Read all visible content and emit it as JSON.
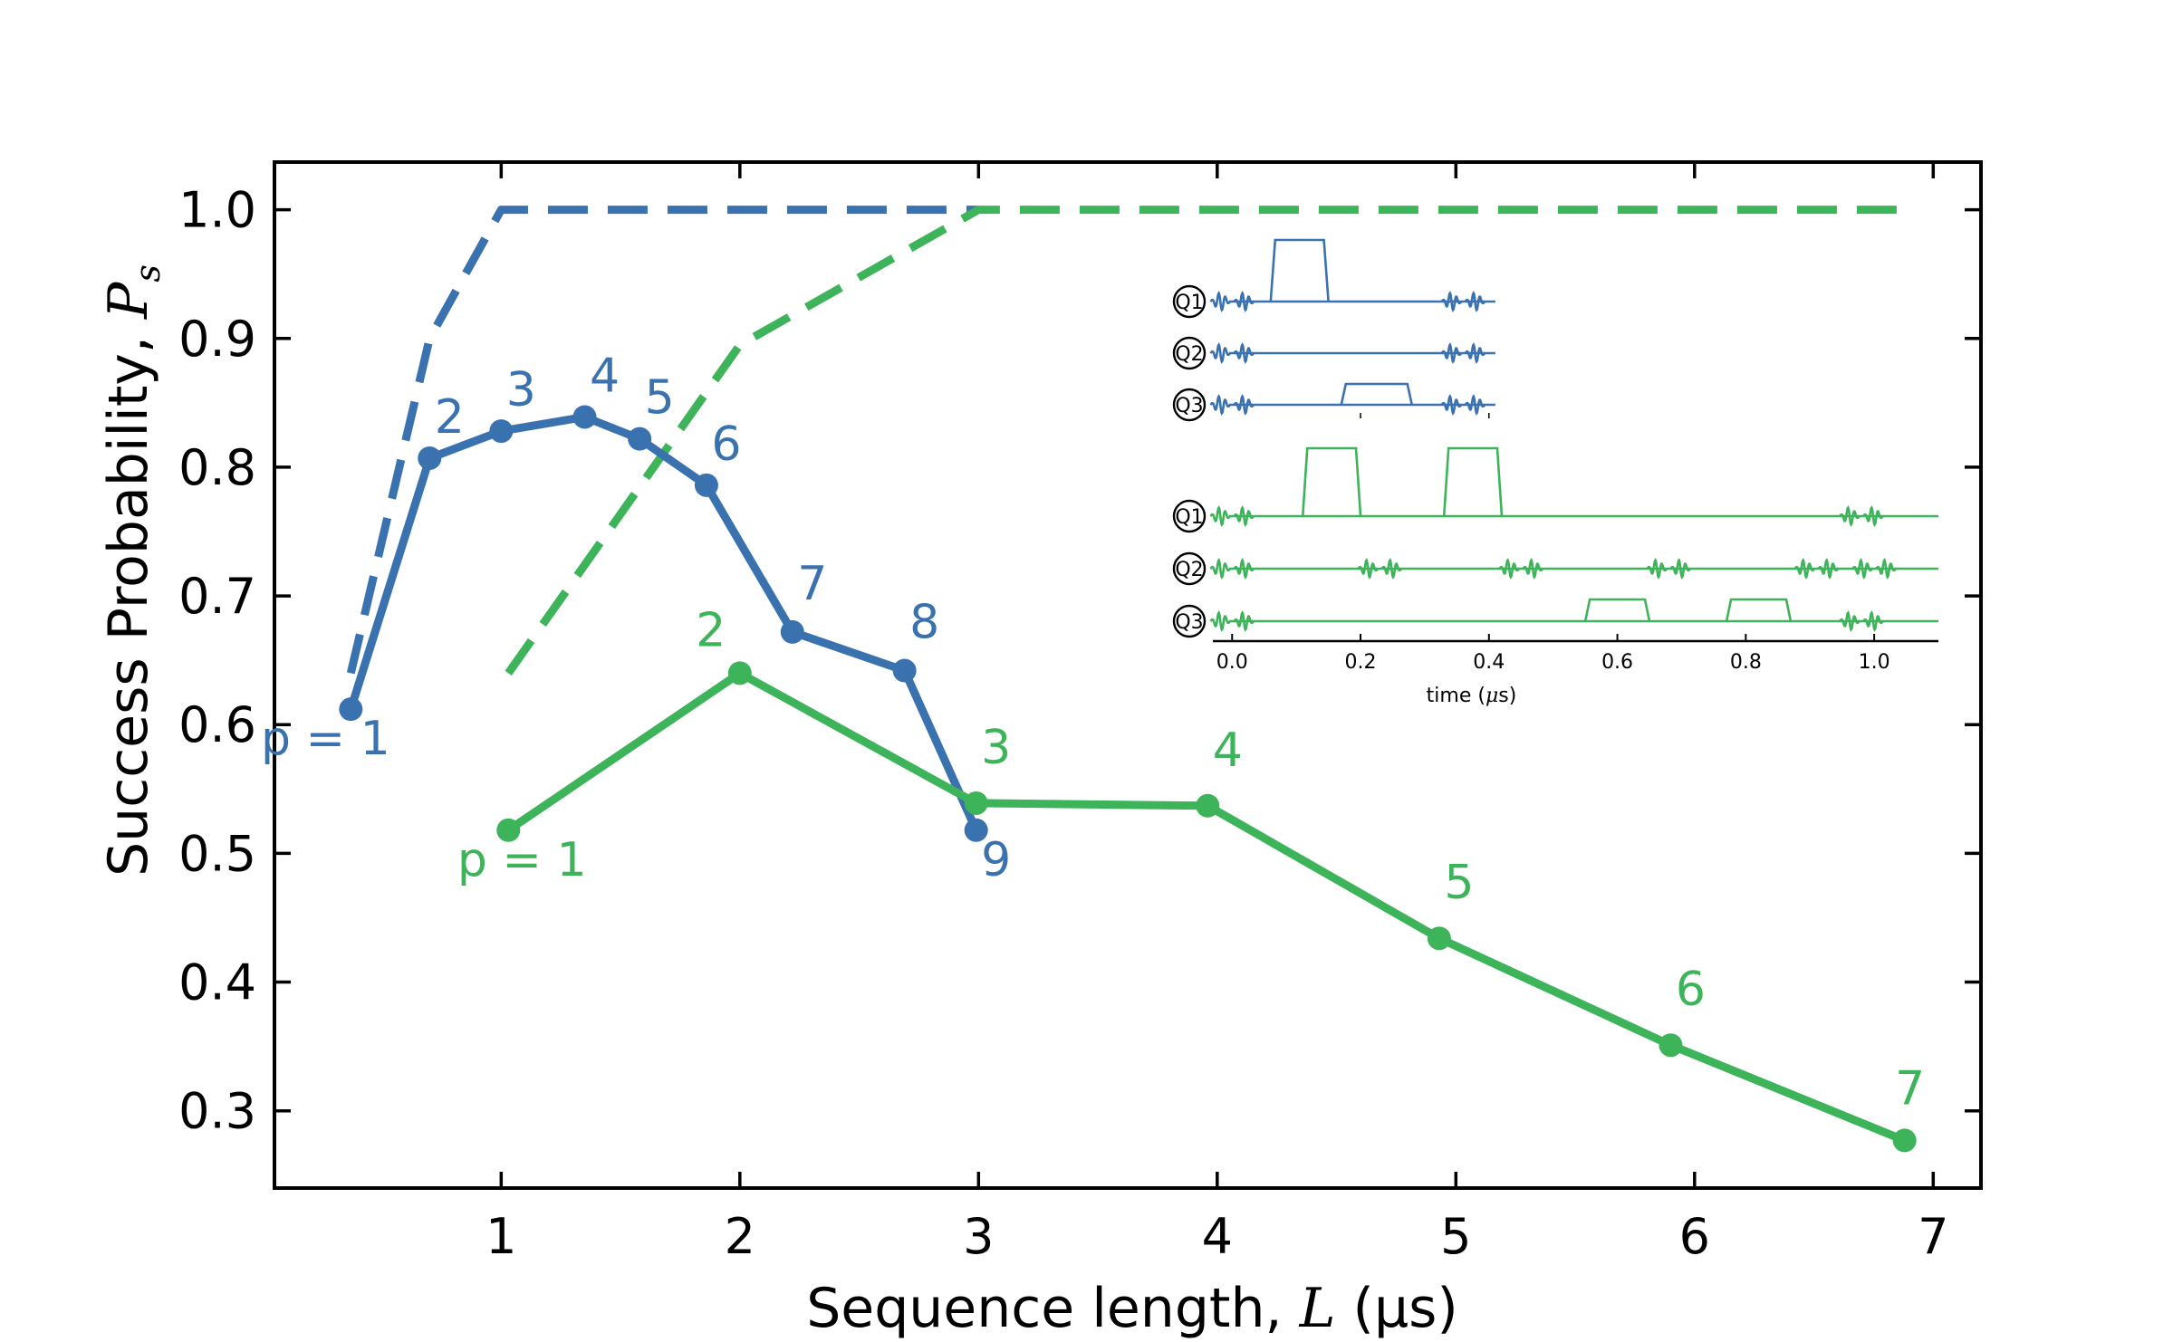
{
  "chart_data": {
    "type": "line",
    "xlabel_prefix": "Sequence length, ",
    "xlabel_var": "L",
    "xlabel_suffix": " (μs)",
    "ylabel_prefix": "Success Probability, ",
    "ylabel_var": "P",
    "ylabel_sub": "s",
    "xlim": [
      0.05,
      7.2
    ],
    "ylim": [
      0.24,
      1.037
    ],
    "xticks": [
      "1",
      "2",
      "3",
      "4",
      "5",
      "6",
      "7"
    ],
    "yticks": [
      "0.3",
      "0.4",
      "0.5",
      "0.6",
      "0.7",
      "0.8",
      "0.9",
      "1.0"
    ],
    "colors": {
      "blue": "#3a72b0",
      "green": "#3db35a"
    },
    "series": [
      {
        "color": "#3a72b0",
        "style": "solid",
        "x": [
          0.37,
          0.7,
          1.0,
          1.35,
          1.58,
          1.86,
          2.22,
          2.69,
          2.99
        ],
        "y": [
          0.612,
          0.807,
          0.828,
          0.839,
          0.822,
          0.786,
          0.672,
          0.642,
          0.518
        ],
        "labels": [
          "p = 1",
          "2",
          "3",
          "4",
          "5",
          "6",
          "7",
          "8",
          "9"
        ]
      },
      {
        "color": "#3db35a",
        "style": "solid",
        "x": [
          1.03,
          2.0,
          2.99,
          3.96,
          4.93,
          5.9,
          6.88
        ],
        "y": [
          0.518,
          0.64,
          0.539,
          0.537,
          0.434,
          0.351,
          0.277
        ],
        "labels": [
          "p = 1",
          "2",
          "3",
          "4",
          "5",
          "6",
          "7"
        ]
      },
      {
        "color": "#3a72b0",
        "style": "dashed",
        "x": [
          0.37,
          0.7,
          1.0,
          3.0
        ],
        "y": [
          0.64,
          0.9,
          1.0,
          1.0
        ],
        "labels": []
      },
      {
        "color": "#3db35a",
        "style": "dashed",
        "x": [
          1.03,
          2.0,
          3.0,
          6.88
        ],
        "y": [
          0.64,
          0.895,
          1.0,
          1.0
        ],
        "labels": []
      }
    ],
    "inset": {
      "xlabel_prefix": "time (",
      "xlabel_mu": "μ",
      "xlabel_suffix": "s)",
      "xticks": [
        "0.0",
        "0.2",
        "0.4",
        "0.6",
        "0.8",
        "1.0"
      ],
      "xlim": [
        -0.03,
        1.1
      ],
      "qubits_top": [
        "Q1",
        "Q2",
        "Q3"
      ],
      "qubits_bottom": [
        "Q1",
        "Q2",
        "Q3"
      ],
      "top_end": 0.41,
      "top_pulses_x": [
        [
          0.06,
          0.15
        ],
        [
          0.17,
          0.28
        ]
      ],
      "bottom_pulses_x": [
        [
          0.11,
          0.2
        ],
        [
          0.33,
          0.42
        ],
        [
          0.55,
          0.65
        ],
        [
          0.77,
          0.87
        ]
      ]
    }
  }
}
